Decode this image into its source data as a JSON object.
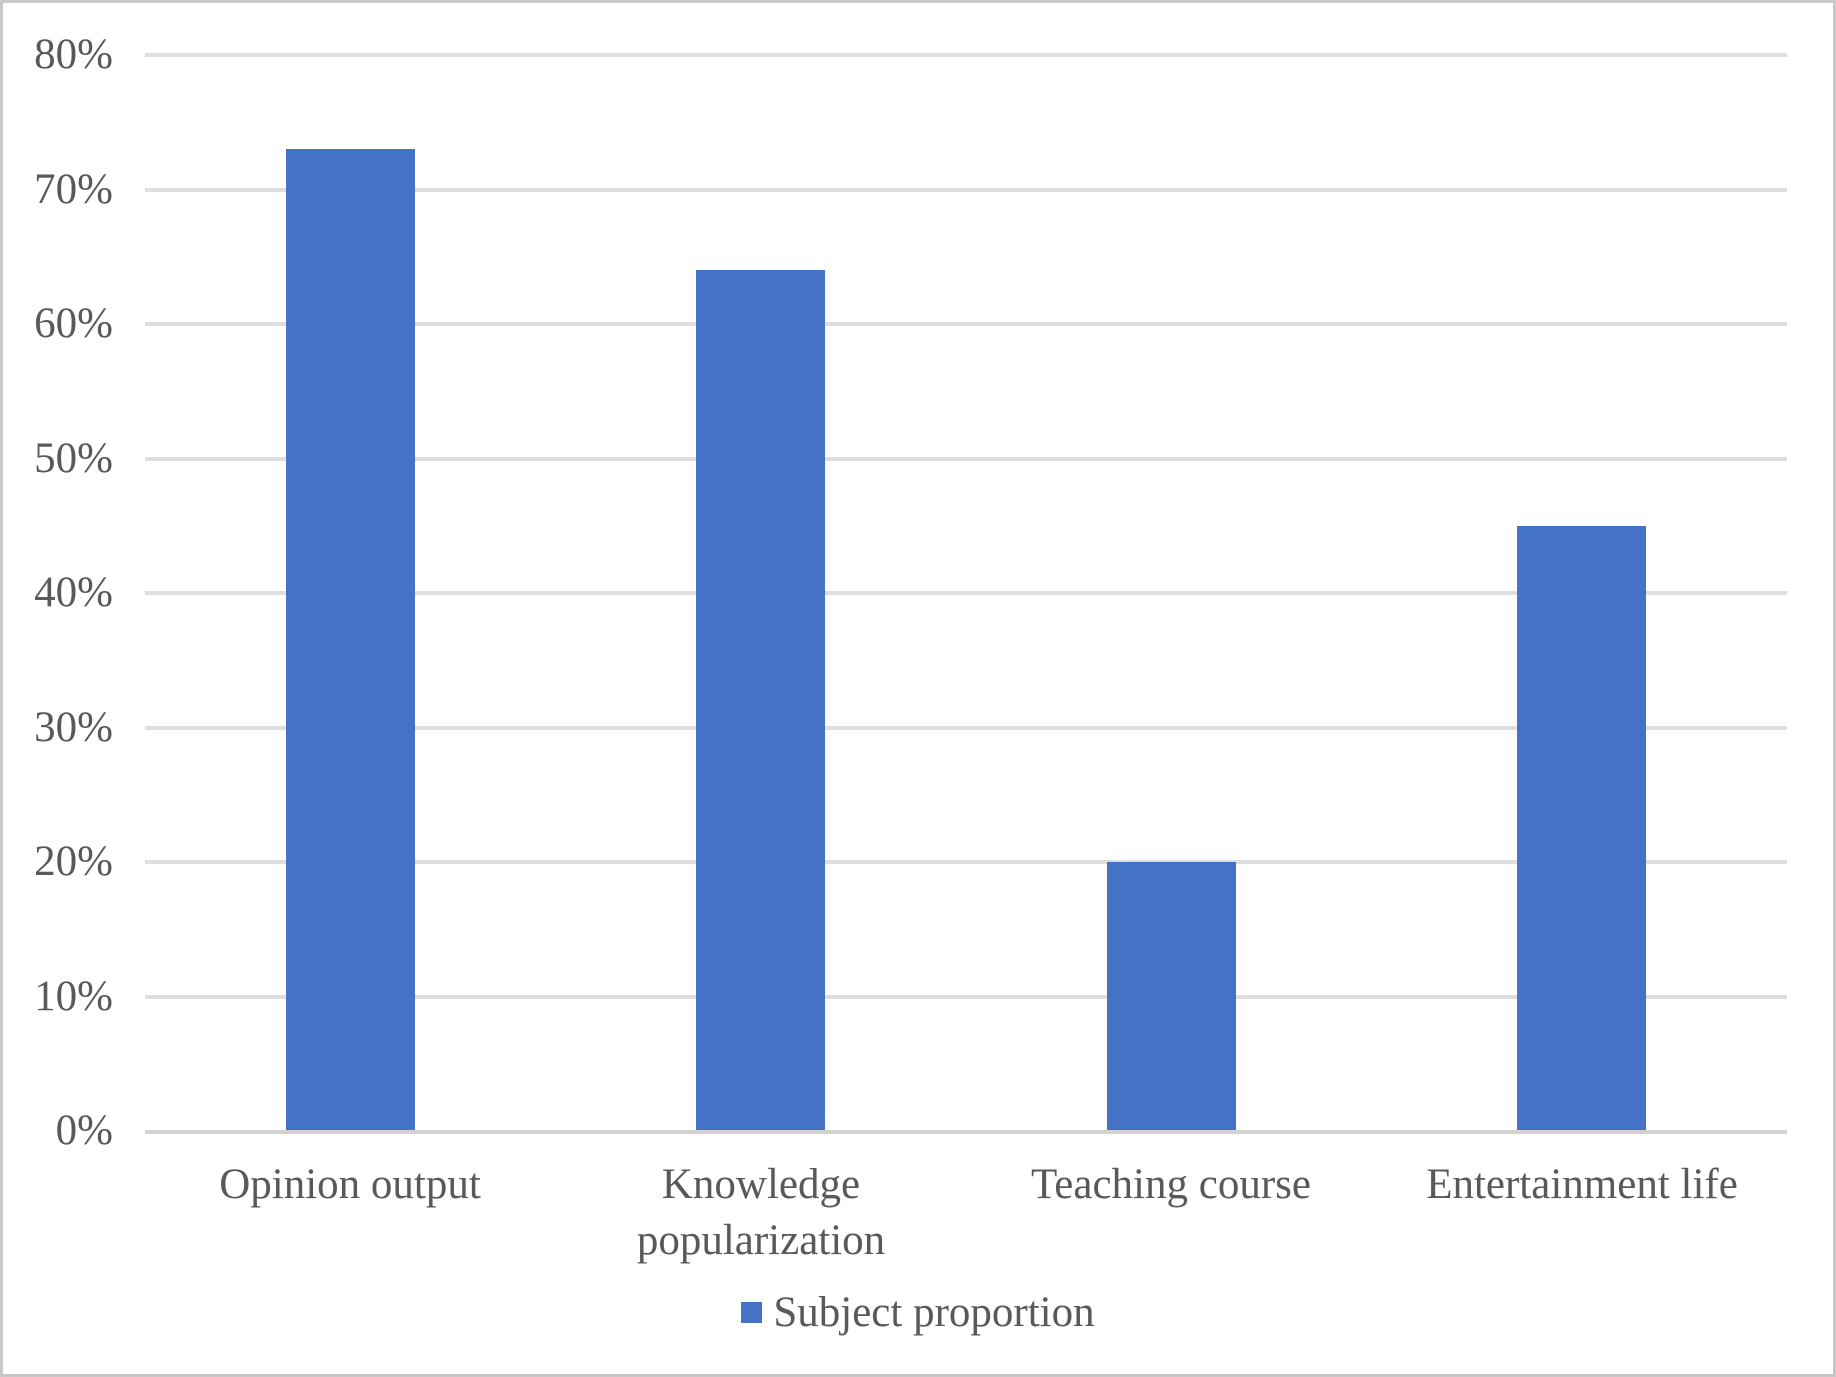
{
  "chart_data": {
    "type": "bar",
    "title": "",
    "xlabel": "",
    "ylabel": "",
    "categories": [
      "Opinion output",
      "Knowledge popularization",
      "Teaching course",
      "Entertainment life"
    ],
    "series": [
      {
        "name": "Subject proportion",
        "values": [
          73,
          64,
          20,
          45
        ]
      }
    ],
    "unit": "%",
    "ylim": [
      0,
      80
    ],
    "ytick_step": 10,
    "yticks": [
      "0%",
      "10%",
      "20%",
      "30%",
      "40%",
      "50%",
      "60%",
      "70%",
      "80%"
    ],
    "grid": true,
    "legend_position": "bottom-center",
    "colors": {
      "bar": "#4472C4",
      "gridline": "#DEDEDE",
      "axis_line": "#D2D2D2",
      "text": "#595959",
      "frame_border": "#C8C8C8",
      "background": "#FFFFFF"
    }
  },
  "legend": {
    "items": [
      {
        "label": "Subject proportion",
        "color": "#4472C4"
      }
    ]
  }
}
